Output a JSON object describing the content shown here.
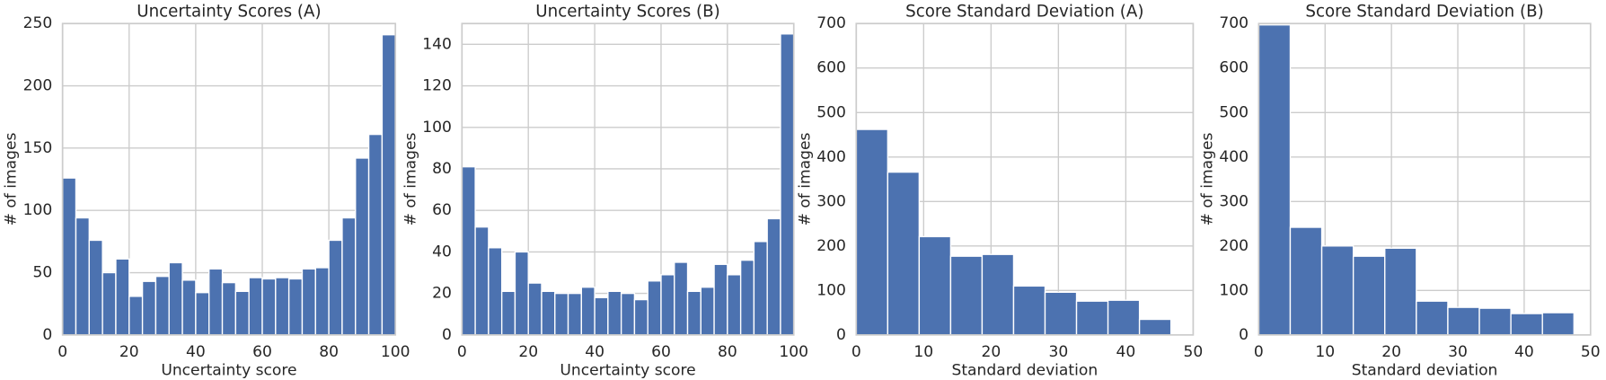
{
  "chart_data": [
    {
      "type": "histogram",
      "title": "Uncertainty Scores (A)",
      "xlabel": "Uncertainty score",
      "ylabel": "# of images",
      "bins": [
        0,
        4,
        8,
        12,
        16,
        20,
        24,
        28,
        32,
        36,
        40,
        44,
        48,
        52,
        56,
        60,
        64,
        68,
        72,
        76,
        80,
        84,
        88,
        92,
        96,
        100
      ],
      "values": [
        126,
        94,
        76,
        50,
        61,
        31,
        43,
        47,
        58,
        44,
        34,
        53,
        42,
        35,
        46,
        45,
        46,
        45,
        53,
        54,
        76,
        94,
        142,
        161,
        241
      ],
      "color": "#4c72b0",
      "xlim": [
        0,
        100
      ],
      "ylim": [
        0,
        250
      ],
      "xticks": [
        0,
        20,
        40,
        60,
        80,
        100
      ],
      "yticks": [
        0,
        50,
        100,
        150,
        200,
        250
      ],
      "grid": true
    },
    {
      "type": "histogram",
      "title": "Uncertainty Scores (B)",
      "xlabel": "Uncertainty score",
      "ylabel": "# of images",
      "bins": [
        0,
        4,
        8,
        12,
        16,
        20,
        24,
        28,
        32,
        36,
        40,
        44,
        48,
        52,
        56,
        60,
        64,
        68,
        72,
        76,
        80,
        84,
        88,
        92,
        96,
        100
      ],
      "values": [
        81,
        52,
        42,
        21,
        40,
        25,
        21,
        20,
        20,
        23,
        18,
        21,
        20,
        17,
        26,
        29,
        35,
        21,
        23,
        34,
        29,
        36,
        45,
        56,
        145
      ],
      "color": "#4c72b0",
      "xlim": [
        0,
        100
      ],
      "ylim": [
        0,
        150
      ],
      "xticks": [
        0,
        20,
        40,
        60,
        80,
        100
      ],
      "yticks": [
        0,
        20,
        40,
        60,
        80,
        100,
        120,
        140
      ],
      "grid": true
    },
    {
      "type": "histogram",
      "title": "Score Standard Deviation (A)",
      "xlabel": "Standard deviation",
      "ylabel": "# of images",
      "bins": [
        0,
        4.67,
        9.34,
        14.01,
        18.68,
        23.35,
        28.02,
        32.69,
        37.36,
        42.03,
        46.7
      ],
      "values": [
        462,
        366,
        221,
        177,
        181,
        110,
        96,
        76,
        78,
        35
      ],
      "color": "#4c72b0",
      "xlim": [
        0,
        50
      ],
      "ylim": [
        0,
        700
      ],
      "xticks": [
        0,
        10,
        20,
        30,
        40,
        50
      ],
      "yticks": [
        0,
        100,
        200,
        300,
        400,
        500,
        600,
        700
      ],
      "grid": true
    },
    {
      "type": "histogram",
      "title": "Score Standard Deviation (B)",
      "xlabel": "Standard deviation",
      "ylabel": "# of images",
      "bins": [
        0,
        4.75,
        9.5,
        14.25,
        19,
        23.75,
        28.5,
        33.25,
        38,
        42.75,
        47.5
      ],
      "values": [
        697,
        242,
        200,
        177,
        195,
        76,
        62,
        60,
        48,
        50
      ],
      "color": "#4c72b0",
      "xlim": [
        0,
        50
      ],
      "ylim": [
        0,
        700
      ],
      "xticks": [
        0,
        10,
        20,
        30,
        40,
        50
      ],
      "yticks": [
        0,
        100,
        200,
        300,
        400,
        500,
        600,
        700
      ],
      "grid": true
    }
  ]
}
